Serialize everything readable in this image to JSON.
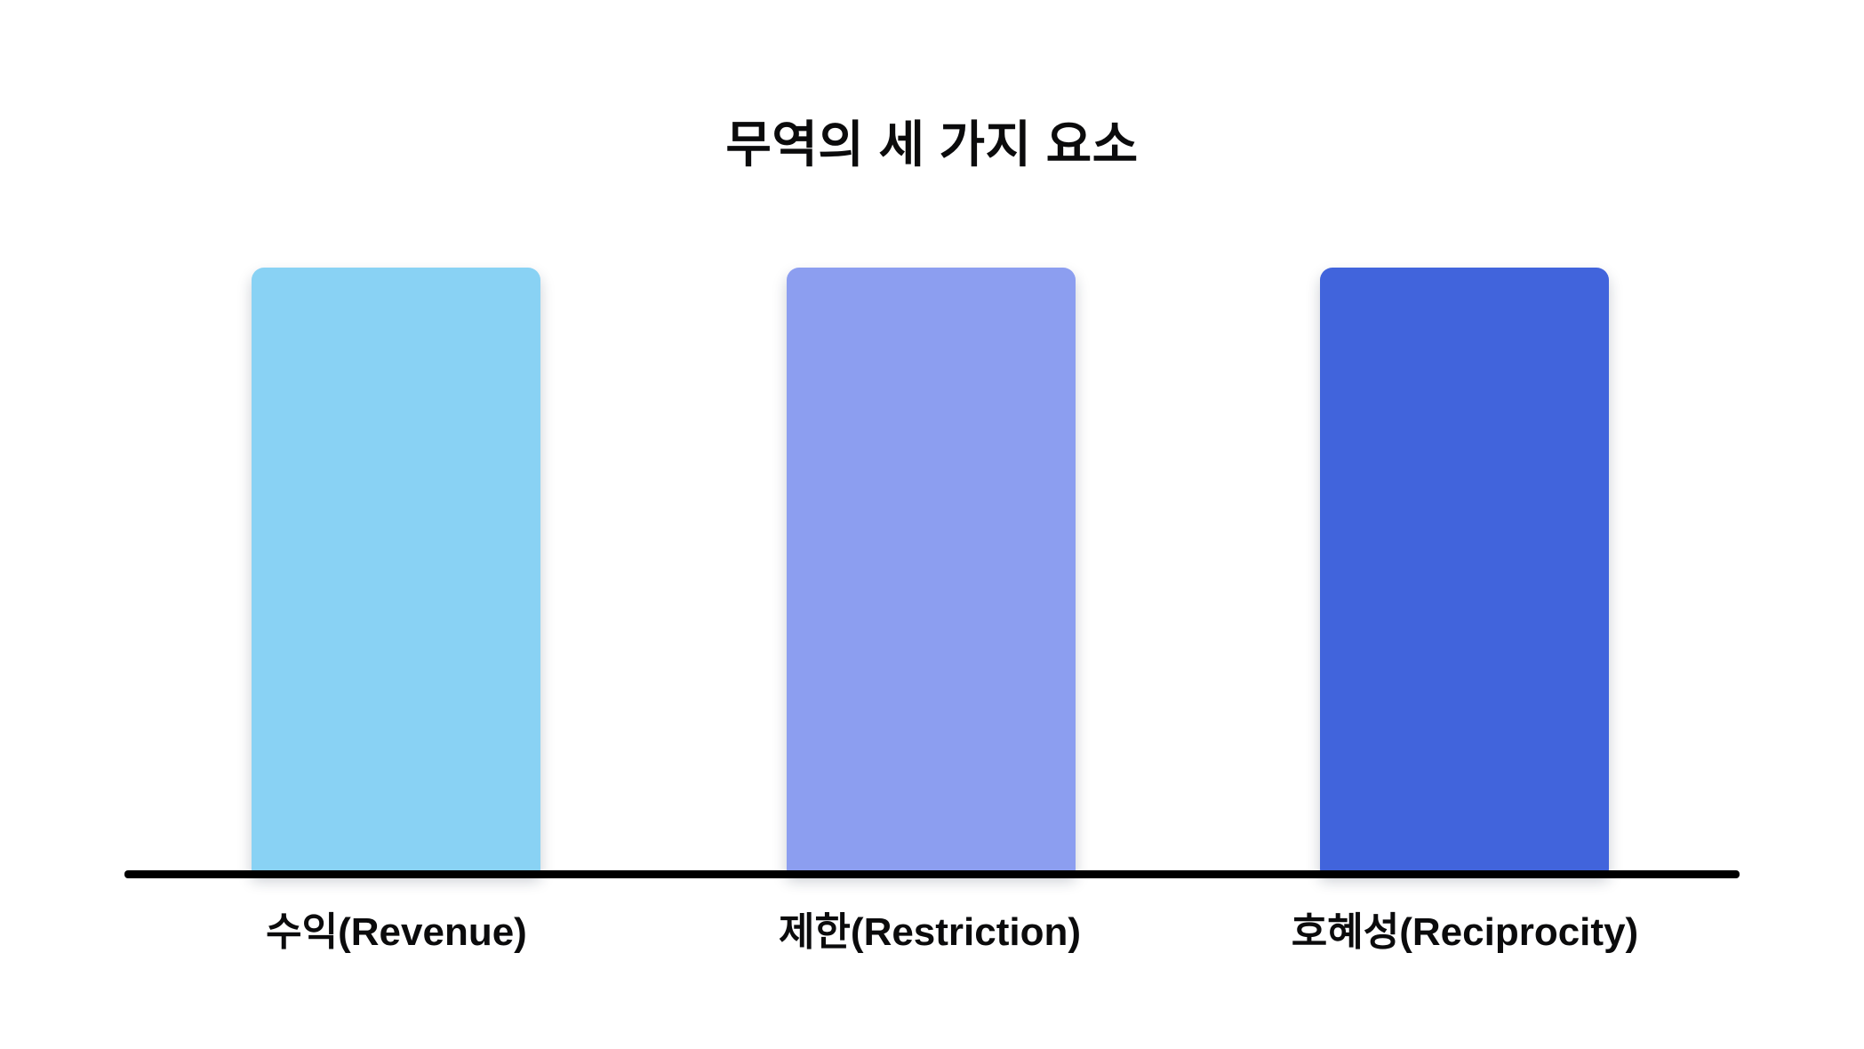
{
  "chart_data": {
    "type": "bar",
    "title": "무역의 세 가지 요소",
    "categories": [
      "수익(Revenue)",
      "제한(Restriction)",
      "호혜성(Reciprocity)"
    ],
    "values": [
      100,
      100,
      100
    ],
    "series": [
      {
        "name": "무역의 세 가지 요소",
        "values": [
          100,
          100,
          100
        ]
      }
    ],
    "xlabel": "",
    "ylabel": "",
    "ylim": [
      0,
      100
    ],
    "grid": false,
    "legend_position": "none",
    "bar_colors": [
      "#89D2F4",
      "#8C9EF0",
      "#4164DC"
    ],
    "axis_color": "#000000",
    "background_color": "#FFFFFF",
    "text_color": "#0B0B0C"
  }
}
